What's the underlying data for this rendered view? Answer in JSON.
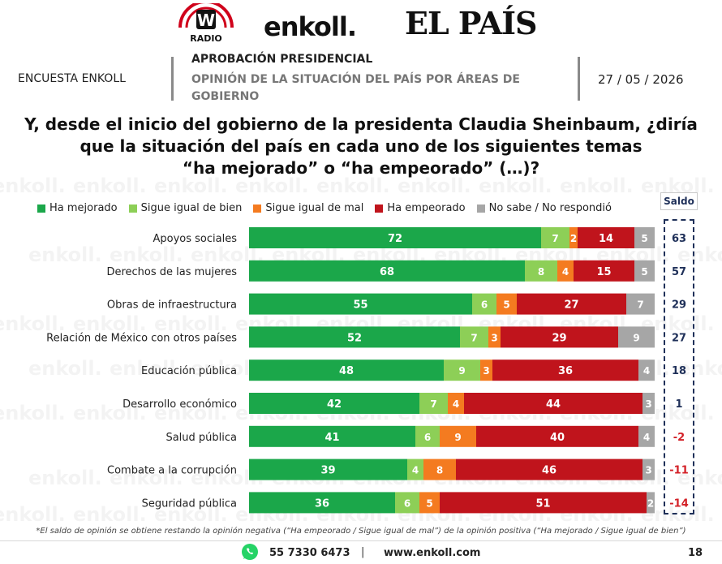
{
  "header": {
    "logo_w_letter": "W",
    "logo_w_text": "RADIO",
    "logo_enkoll": "enkoll.",
    "logo_elpais": "EL PAÍS"
  },
  "info": {
    "survey": "ENCUESTA ENKOLL",
    "subject_line1": "APROBACIÓN PRESIDENCIAL",
    "subject_line2": "OPINIÓN DE LA SITUACIÓN DEL PAÍS POR ÁREAS DE GOBIERNO",
    "date": "27 / 05 / 2026"
  },
  "question": [
    "Y, desde el inicio del gobierno de la presidenta Claudia Sheinbaum, ¿diría",
    "que la situación del país en cada uno de los siguientes temas",
    "“ha mejorado” o “ha empeorado” (…)?"
  ],
  "saldo_label": "Saldo",
  "watermark": "enkoll.",
  "colors": {
    "green": "#1ba74a",
    "lightgreen": "#8dcf57",
    "orange": "#f47b20",
    "red": "#c0141c",
    "gray": "#a6a6a6",
    "navy": "#1f3059",
    "negative": "#d32027"
  },
  "chart_data": {
    "type": "bar",
    "orientation": "horizontal",
    "stacked": true,
    "xlim": [
      0,
      100
    ],
    "categories": [
      "Apoyos sociales",
      "Derechos de las mujeres",
      "Obras de infraestructura",
      "Relación de México con otros países",
      "Educación pública",
      "Desarrollo económico",
      "Salud pública",
      "Combate a la corrupción",
      "Seguridad pública"
    ],
    "series": [
      {
        "name": "Ha mejorado",
        "color": "#1ba74a",
        "values": [
          72,
          68,
          55,
          52,
          48,
          42,
          41,
          39,
          36
        ]
      },
      {
        "name": "Sigue igual de bien",
        "color": "#8dcf57",
        "values": [
          7,
          8,
          6,
          7,
          9,
          7,
          6,
          4,
          6
        ]
      },
      {
        "name": "Sigue igual de mal",
        "color": "#f47b20",
        "values": [
          2,
          4,
          5,
          3,
          3,
          4,
          9,
          8,
          5
        ]
      },
      {
        "name": "Ha empeorado",
        "color": "#c0141c",
        "values": [
          14,
          15,
          27,
          29,
          36,
          44,
          40,
          46,
          51
        ]
      },
      {
        "name": "No sabe / No respondió",
        "color": "#a6a6a6",
        "values": [
          5,
          5,
          7,
          9,
          4,
          3,
          4,
          3,
          2
        ]
      }
    ],
    "saldo": [
      63,
      57,
      29,
      27,
      18,
      1,
      -2,
      -11,
      -14
    ],
    "legend_position": "top"
  },
  "footer": {
    "note": "*El saldo de opinión se obtiene restando la opinión negativa (“Ha empeorado / Sigue igual de mal”) de la opinión positiva (“Ha mejorado / Sigue igual de bien”)",
    "phone": "55 7330 6473",
    "separator": "|",
    "website": "www.enkoll.com",
    "page": "18"
  }
}
